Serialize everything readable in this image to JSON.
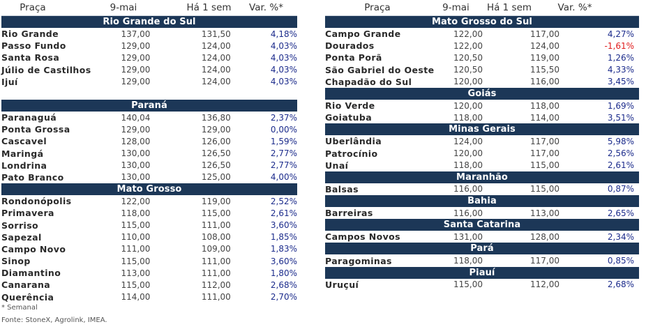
{
  "headers": {
    "place": "Praça",
    "date": "9-mai",
    "week": "Há 1 sem",
    "var": "Var. %*"
  },
  "left_sections": [
    {
      "title": "Rio Grande do Sul",
      "rows": [
        {
          "name": "Rio Grande",
          "cur": "137,00",
          "prev": "131,50",
          "var": "4,18%"
        },
        {
          "name": "Passo Fundo",
          "cur": "129,00",
          "prev": "124,00",
          "var": "4,03%"
        },
        {
          "name": "Santa Rosa",
          "cur": "129,00",
          "prev": "124,00",
          "var": "4,03%"
        },
        {
          "name": "Júlio de Castilhos",
          "cur": "129,00",
          "prev": "124,00",
          "var": "4,03%"
        },
        {
          "name": "Ijuí",
          "cur": "129,00",
          "prev": "124,00",
          "var": "4,03%"
        }
      ]
    },
    {
      "title": "Paraná",
      "rows": [
        {
          "name": "Paranaguá",
          "cur": "140,04",
          "prev": "136,80",
          "var": "2,37%"
        },
        {
          "name": "Ponta Grossa",
          "cur": "129,00",
          "prev": "129,00",
          "var": "0,00%"
        },
        {
          "name": "Cascavel",
          "cur": "128,00",
          "prev": "126,00",
          "var": "1,59%"
        },
        {
          "name": "Maringá",
          "cur": "130,00",
          "prev": "126,50",
          "var": "2,77%"
        },
        {
          "name": "Londrina",
          "cur": "130,00",
          "prev": "126,50",
          "var": "2,77%"
        },
        {
          "name": "Pato Branco",
          "cur": "130,00",
          "prev": "125,00",
          "var": "4,00%"
        }
      ]
    },
    {
      "title": "Mato Grosso",
      "rows": [
        {
          "name": "Rondonópolis",
          "cur": "122,00",
          "prev": "119,00",
          "var": "2,52%"
        },
        {
          "name": "Primavera",
          "cur": "118,00",
          "prev": "115,00",
          "var": "2,61%"
        },
        {
          "name": "Sorriso",
          "cur": "115,00",
          "prev": "111,00",
          "var": "3,60%"
        },
        {
          "name": "Sapezal",
          "cur": "110,00",
          "prev": "108,00",
          "var": "1,85%"
        },
        {
          "name": "Campo Novo",
          "cur": "111,00",
          "prev": "109,00",
          "var": "1,83%"
        },
        {
          "name": "Sinop",
          "cur": "115,00",
          "prev": "111,00",
          "var": "3,60%"
        },
        {
          "name": "Diamantino",
          "cur": "113,00",
          "prev": "111,00",
          "var": "1,80%"
        },
        {
          "name": "Canarana",
          "cur": "115,00",
          "prev": "112,00",
          "var": "2,68%"
        },
        {
          "name": "Querência",
          "cur": "114,00",
          "prev": "111,00",
          "var": "2,70%"
        }
      ]
    }
  ],
  "right_sections": [
    {
      "title": "Mato Grosso do Sul",
      "rows": [
        {
          "name": "Campo Grande",
          "cur": "122,00",
          "prev": "117,00",
          "var": "4,27%"
        },
        {
          "name": "Dourados",
          "cur": "122,00",
          "prev": "124,00",
          "var": "-1,61%",
          "neg": true
        },
        {
          "name": "Ponta Porã",
          "cur": "120,50",
          "prev": "119,00",
          "var": "1,26%"
        },
        {
          "name": "São Gabriel do Oeste",
          "cur": "120,50",
          "prev": "115,50",
          "var": "4,33%"
        },
        {
          "name": "Chapadão do Sul",
          "cur": "120,00",
          "prev": "116,00",
          "var": "3,45%"
        }
      ]
    },
    {
      "title": "Goiás",
      "rows": [
        {
          "name": "Rio Verde",
          "cur": "120,00",
          "prev": "118,00",
          "var": "1,69%"
        },
        {
          "name": "Goiatuba",
          "cur": "118,00",
          "prev": "114,00",
          "var": "3,51%"
        }
      ]
    },
    {
      "title": "Minas Gerais",
      "rows": [
        {
          "name": "Uberlândia",
          "cur": "124,00",
          "prev": "117,00",
          "var": "5,98%"
        },
        {
          "name": "Patrocínio",
          "cur": "120,00",
          "prev": "117,00",
          "var": "2,56%"
        },
        {
          "name": "Unaí",
          "cur": "118,00",
          "prev": "115,00",
          "var": "2,61%"
        }
      ]
    },
    {
      "title": "Maranhão",
      "rows": [
        {
          "name": "Balsas",
          "cur": "116,00",
          "prev": "115,00",
          "var": "0,87%"
        }
      ]
    },
    {
      "title": "Bahia",
      "rows": [
        {
          "name": "Barreiras",
          "cur": "116,00",
          "prev": "113,00",
          "var": "2,65%"
        }
      ]
    },
    {
      "title": "Santa Catarina",
      "rows": [
        {
          "name": "Campos Novos",
          "cur": "131,00",
          "prev": "128,00",
          "var": "2,34%"
        }
      ]
    },
    {
      "title": "Pará",
      "rows": [
        {
          "name": "Paragominas",
          "cur": "118,00",
          "prev": "117,00",
          "var": "0,85%"
        }
      ]
    },
    {
      "title": "Piauí",
      "rows": [
        {
          "name": "Uruçuí",
          "cur": "115,00",
          "prev": "112,00",
          "var": "2,68%"
        }
      ]
    }
  ],
  "footnote": "* Semanal",
  "source": "Fonte: StoneX, Agrolink, IMEA."
}
